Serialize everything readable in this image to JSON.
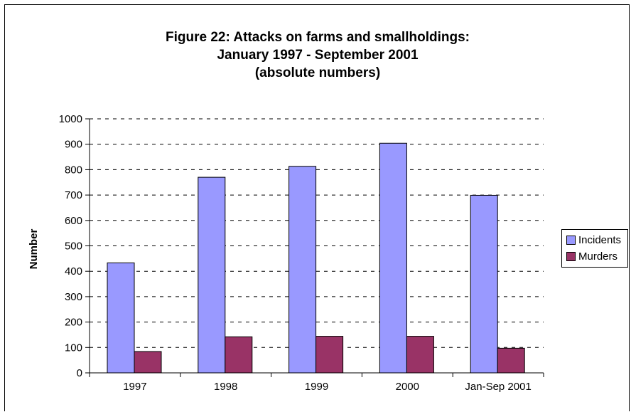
{
  "chart_data": {
    "type": "bar",
    "title": [
      "Figure 22:  Attacks on farms and smallholdings:",
      "January 1997 - September 2001",
      "(absolute numbers)"
    ],
    "xlabel": "",
    "ylabel": "Number",
    "ylim": [
      0,
      1000
    ],
    "yticks": [
      "0",
      "100",
      "200",
      "300",
      "400",
      "500",
      "600",
      "700",
      "800",
      "900",
      "1000"
    ],
    "grid": "horizontal dashed",
    "legend_position": "right",
    "categories": [
      "1997",
      "1998",
      "1999",
      "2000",
      "Jan-Sep 2001"
    ],
    "series": [
      {
        "name": "Incidents",
        "color": "#9999FF",
        "values": [
          433,
          770,
          813,
          904,
          699
        ]
      },
      {
        "name": "Murders",
        "color": "#993366",
        "values": [
          84,
          142,
          144,
          144,
          97
        ]
      }
    ]
  }
}
